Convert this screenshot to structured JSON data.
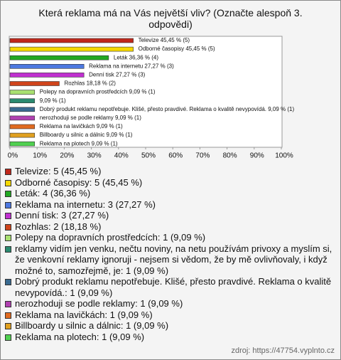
{
  "chart_data": {
    "type": "bar",
    "orientation": "horizontal",
    "title": "Která reklama má na Vás největší vliv? (Označte alespoň 3. odpovědi)",
    "values": [
      45.45,
      45.45,
      36.36,
      27.27,
      27.27,
      18.18,
      9.09,
      9.09,
      9.09,
      9.09,
      9.09,
      9.09,
      9.09
    ],
    "value_labels": [
      "Televize 45,45 % (5)",
      "Odborné časopisy 45,45 % (5)",
      "Leták 36,36 % (4)",
      "Reklama na internetu 27,27 % (3)",
      "Denní tisk 27,27 % (3)",
      "Rozhlas 18,18 % (2)",
      "Polepy na dopravních prostředcích 9,09 % (1)",
      "9,09 % (1)",
      "Dobrý produkt reklamu nepotřebuje. Klišé, přesto pravdivé. Reklama o kvalitě nevypovídá. 9,09 % (1)",
      "nerozhoduji se podle reklamy 9,09 % (1)",
      "Reklama na lavičkách 9,09 % (1)",
      "Billboardy u silnic a dálnic 9,09 % (1)",
      "Reklama na plotech 9,09 % (1)"
    ],
    "legend_labels": [
      "Televize: 5 (45,45 %)",
      "Odborné časopisy: 5 (45,45 %)",
      "Leták: 4 (36,36 %)",
      "Reklama na internetu: 3 (27,27 %)",
      "Denní tisk: 3 (27,27 %)",
      "Rozhlas: 2 (18,18 %)",
      "Polepy na dopravních prostředcích: 1 (9,09 %)",
      "reklamy vidím jen venku, nečtu noviny, na netu používám privoxy a myslím si, že venkovní reklamy ignoruji - nejsem si vědom, že by mě ovlivňovaly, i když možné to, samozřejmě, je: 1 (9,09 %)",
      "Dobrý produkt reklamu nepotřebuje. Klišé, přesto pravdivé. Reklama o kvalitě nevypovídá.: 1 (9,09 %)",
      "nerozhoduji se podle reklamy: 1 (9,09 %)",
      "Reklama na lavičkách: 1 (9,09 %)",
      "Billboardy u silnic a dálnic: 1 (9,09 %)",
      "Reklama na plotech: 1 (9,09 %)"
    ],
    "colors": [
      "#c0281c",
      "#f5d800",
      "#22a822",
      "#4d78e0",
      "#c030d0",
      "#d0441c",
      "#a8e070",
      "#2a8a70",
      "#3a6a90",
      "#b040b0",
      "#e06a20",
      "#e0a020",
      "#50d050"
    ],
    "xlim": [
      0,
      100
    ],
    "xticks": [
      {
        "value": 0,
        "label": "0%"
      },
      {
        "value": 10,
        "label": "10%"
      },
      {
        "value": 20,
        "label": "20%"
      },
      {
        "value": 30,
        "label": "30%"
      },
      {
        "value": 40,
        "label": "40%"
      },
      {
        "value": 50,
        "label": "50%"
      },
      {
        "value": 60,
        "label": "60%"
      },
      {
        "value": 70,
        "label": "70%"
      },
      {
        "value": 80,
        "label": "80%"
      },
      {
        "value": 90,
        "label": "90%"
      },
      {
        "value": 100,
        "label": "100%"
      }
    ],
    "source": "zdroj: https://47754.vyplnto.cz"
  }
}
